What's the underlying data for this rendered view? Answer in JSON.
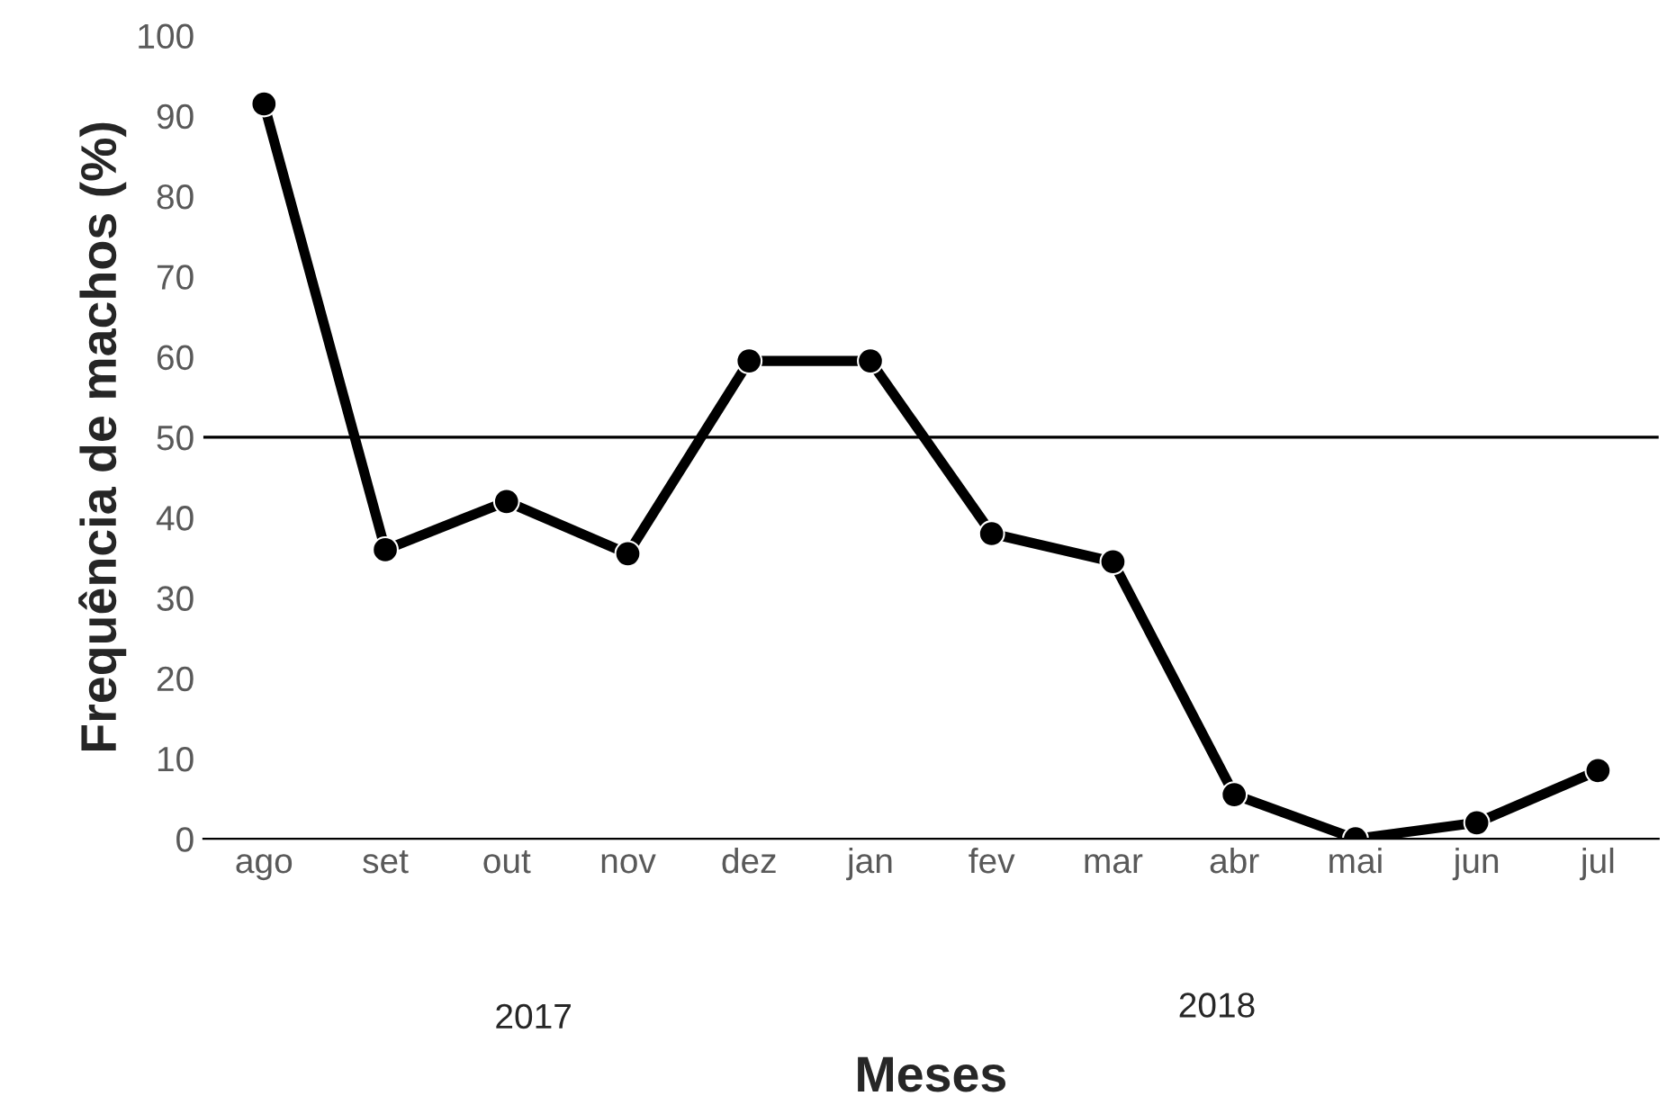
{
  "chart_data": {
    "type": "line",
    "xlabel": "Meses",
    "ylabel": "Frequência de machos (%)",
    "categories": [
      "ago",
      "set",
      "out",
      "nov",
      "dez",
      "jan",
      "fev",
      "mar",
      "abr",
      "mai",
      "jun",
      "jul"
    ],
    "series": [
      {
        "color": "#000000",
        "values": [
          91.5,
          36,
          42,
          35.5,
          59.5,
          59.5,
          38,
          34.5,
          5.5,
          0,
          2,
          8.5
        ]
      }
    ],
    "ylim": [
      0,
      100
    ],
    "yticks": [
      0,
      10,
      20,
      30,
      40,
      50,
      60,
      70,
      80,
      90,
      100
    ],
    "ref_lines": [
      {
        "axis": "y",
        "value": 50,
        "color": "#000000",
        "line_style": "solid"
      }
    ],
    "annotations": [
      "2017",
      "2018"
    ],
    "marker": "circle",
    "line_style": "solid",
    "grid": false,
    "legend": false
  }
}
